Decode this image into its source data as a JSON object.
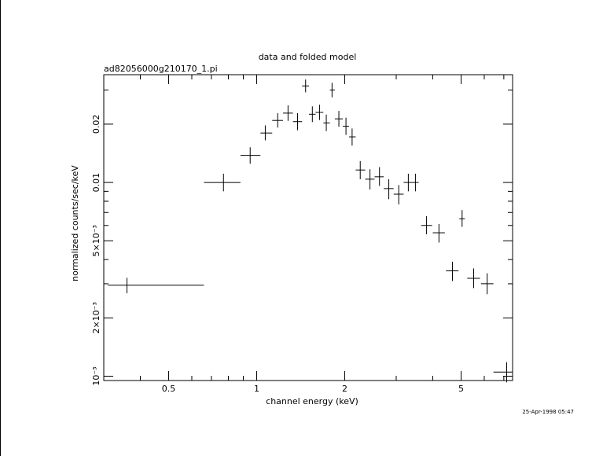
{
  "title": "data and folded model",
  "subtitle": "ad82056000g210170_1.pi",
  "timestamp": "25-Apr-1998 05:47",
  "chart_data": {
    "type": "scatter",
    "title": "data and folded model",
    "subtitle": "ad82056000g210170_1.pi",
    "xlabel": "channel energy (keV)",
    "ylabel": "normalized counts/sec/keV",
    "x_scale": "log",
    "y_scale": "log",
    "xlim": [
      0.3,
      7.5
    ],
    "ylim": [
      0.00095,
      0.036
    ],
    "x_ticks": [
      {
        "value": 0.5,
        "label": "0.5"
      },
      {
        "value": 1,
        "label": "1"
      },
      {
        "value": 2,
        "label": "2"
      },
      {
        "value": 5,
        "label": "5"
      }
    ],
    "y_ticks": [
      {
        "value": 0.001,
        "label": "10⁻³"
      },
      {
        "value": 0.002,
        "label": "2×10⁻³"
      },
      {
        "value": 0.005,
        "label": "5×10⁻³"
      },
      {
        "value": 0.01,
        "label": "0.01"
      },
      {
        "value": 0.02,
        "label": "0.02"
      }
    ],
    "series": [
      {
        "points": [
          {
            "x": 0.36,
            "xlo": 0.31,
            "xhi": 0.66,
            "y": 0.00295,
            "ylo": 0.00268,
            "yhi": 0.00322
          },
          {
            "x": 0.77,
            "xlo": 0.66,
            "xhi": 0.88,
            "y": 0.01,
            "ylo": 0.009,
            "yhi": 0.0111
          },
          {
            "x": 0.95,
            "xlo": 0.88,
            "xhi": 1.03,
            "y": 0.0138,
            "ylo": 0.0125,
            "yhi": 0.0152
          },
          {
            "x": 1.07,
            "xlo": 1.03,
            "xhi": 1.13,
            "y": 0.018,
            "ylo": 0.0165,
            "yhi": 0.0197
          },
          {
            "x": 1.18,
            "xlo": 1.13,
            "xhi": 1.23,
            "y": 0.0209,
            "ylo": 0.0192,
            "yhi": 0.0228
          },
          {
            "x": 1.28,
            "xlo": 1.23,
            "xhi": 1.33,
            "y": 0.0228,
            "ylo": 0.0208,
            "yhi": 0.025
          },
          {
            "x": 1.38,
            "xlo": 1.33,
            "xhi": 1.43,
            "y": 0.0206,
            "ylo": 0.0186,
            "yhi": 0.0228
          },
          {
            "x": 1.47,
            "xlo": 1.43,
            "xhi": 1.51,
            "y": 0.0315,
            "ylo": 0.0292,
            "yhi": 0.034
          },
          {
            "x": 1.55,
            "xlo": 1.51,
            "xhi": 1.59,
            "y": 0.0225,
            "ylo": 0.0205,
            "yhi": 0.0247
          },
          {
            "x": 1.64,
            "xlo": 1.59,
            "xhi": 1.69,
            "y": 0.023,
            "ylo": 0.021,
            "yhi": 0.0252
          },
          {
            "x": 1.73,
            "xlo": 1.69,
            "xhi": 1.78,
            "y": 0.0203,
            "ylo": 0.0184,
            "yhi": 0.0224
          },
          {
            "x": 1.81,
            "xlo": 1.78,
            "xhi": 1.85,
            "y": 0.03,
            "ylo": 0.0275,
            "yhi": 0.0327
          },
          {
            "x": 1.91,
            "xlo": 1.85,
            "xhi": 1.97,
            "y": 0.0213,
            "ylo": 0.0194,
            "yhi": 0.0234
          },
          {
            "x": 2.02,
            "xlo": 1.97,
            "xhi": 2.07,
            "y": 0.0195,
            "ylo": 0.0176,
            "yhi": 0.0216
          },
          {
            "x": 2.12,
            "xlo": 2.07,
            "xhi": 2.18,
            "y": 0.0172,
            "ylo": 0.0155,
            "yhi": 0.019
          },
          {
            "x": 2.26,
            "xlo": 2.18,
            "xhi": 2.35,
            "y": 0.0116,
            "ylo": 0.0104,
            "yhi": 0.0129
          },
          {
            "x": 2.44,
            "xlo": 2.35,
            "xhi": 2.53,
            "y": 0.0104,
            "ylo": 0.0092,
            "yhi": 0.0117
          },
          {
            "x": 2.63,
            "xlo": 2.53,
            "xhi": 2.72,
            "y": 0.0107,
            "ylo": 0.0096,
            "yhi": 0.012
          },
          {
            "x": 2.83,
            "xlo": 2.72,
            "xhi": 2.94,
            "y": 0.0093,
            "ylo": 0.0082,
            "yhi": 0.0104
          },
          {
            "x": 3.06,
            "xlo": 2.94,
            "xhi": 3.18,
            "y": 0.0087,
            "ylo": 0.0077,
            "yhi": 0.0097
          },
          {
            "x": 3.3,
            "xlo": 3.18,
            "xhi": 3.4,
            "y": 0.01,
            "ylo": 0.009,
            "yhi": 0.0111
          },
          {
            "x": 3.49,
            "xlo": 3.4,
            "xhi": 3.58,
            "y": 0.01,
            "ylo": 0.009,
            "yhi": 0.0111
          },
          {
            "x": 3.81,
            "xlo": 3.65,
            "xhi": 3.98,
            "y": 0.006,
            "ylo": 0.0054,
            "yhi": 0.0067
          },
          {
            "x": 4.2,
            "xlo": 4.0,
            "xhi": 4.4,
            "y": 0.0055,
            "ylo": 0.0049,
            "yhi": 0.0061
          },
          {
            "x": 4.67,
            "xlo": 4.44,
            "xhi": 4.9,
            "y": 0.0035,
            "ylo": 0.0031,
            "yhi": 0.0039
          },
          {
            "x": 5.04,
            "xlo": 4.93,
            "xhi": 5.15,
            "y": 0.0065,
            "ylo": 0.0059,
            "yhi": 0.0072
          },
          {
            "x": 5.52,
            "xlo": 5.25,
            "xhi": 5.8,
            "y": 0.0032,
            "ylo": 0.00285,
            "yhi": 0.0036
          },
          {
            "x": 6.14,
            "xlo": 5.85,
            "xhi": 6.45,
            "y": 0.003,
            "ylo": 0.00265,
            "yhi": 0.0034
          },
          {
            "x": 7.16,
            "xlo": 6.45,
            "xhi": 7.7,
            "y": 0.00105,
            "ylo": 0.00093,
            "yhi": 0.00118
          }
        ]
      }
    ]
  }
}
